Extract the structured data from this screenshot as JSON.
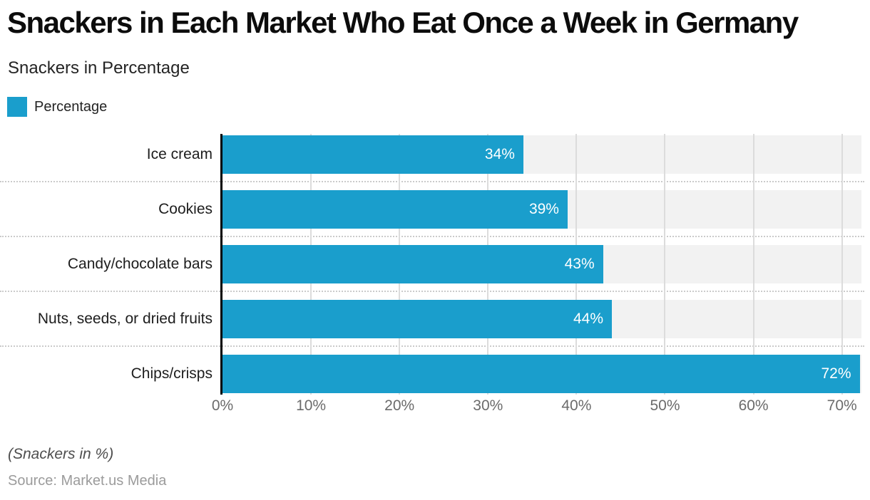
{
  "header": {
    "title": "Snackers in Each Market Who Eat Once a Week in Germany",
    "subtitle": "Snackers in Percentage"
  },
  "legend": {
    "items": [
      {
        "label": "Percentage",
        "color": "#1A9ECC"
      }
    ]
  },
  "chart_data": {
    "type": "bar",
    "orientation": "horizontal",
    "title": "Snackers in Each Market Who Eat Once a Week in Germany",
    "subtitle": "Snackers in Percentage",
    "categories": [
      "Ice cream",
      "Cookies",
      "Candy/chocolate bars",
      "Nuts, seeds, or dried fruits",
      "Chips/crisps"
    ],
    "series": [
      {
        "name": "Percentage",
        "values": [
          34,
          39,
          43,
          44,
          72
        ]
      }
    ],
    "data_labels": [
      "34%",
      "39%",
      "43%",
      "44%",
      "72%"
    ],
    "x_ticks": [
      "0%",
      "10%",
      "20%",
      "30%",
      "40%",
      "50%",
      "60%",
      "70%"
    ],
    "tick_step": 10,
    "xlim": [
      0,
      72.2
    ],
    "grid": "vertical solid gridlines; dotted horizontal row separators",
    "legend_position": "top-left"
  },
  "footer": {
    "note": "(Snackers in %)",
    "source": "Source: Market.us Media"
  },
  "colors": {
    "bar": "#1A9ECC",
    "track": "#F2F2F2",
    "gridline": "#DCDCDC",
    "separator": "#CBCBCB",
    "axis": "#000000",
    "tick_text": "#6B6B6B",
    "label_text": "#1D1D1D",
    "value_text": "#FFFFFF"
  }
}
